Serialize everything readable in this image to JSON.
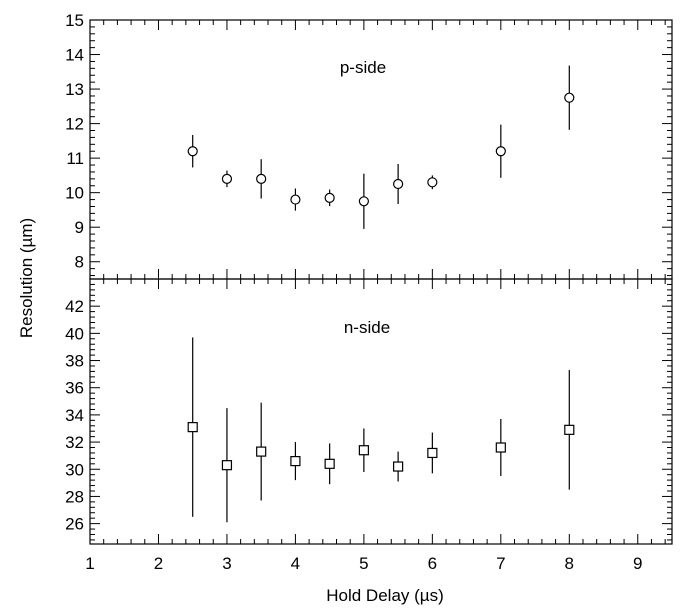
{
  "chart_data": {
    "type": "scatter",
    "xlabel": "Hold Delay (µs)",
    "ylabel": "Resolution (µm)",
    "xlim": [
      1,
      9.5
    ],
    "x_ticks": [
      "1",
      "2",
      "3",
      "4",
      "5",
      "6",
      "7",
      "8",
      "9"
    ],
    "grid": false,
    "panels": [
      {
        "label": "p-side",
        "marker": "circle",
        "ylim": [
          7.5,
          15
        ],
        "y_ticks": [
          "8",
          "9",
          "10",
          "11",
          "12",
          "13",
          "14",
          "15"
        ],
        "points": [
          {
            "x": 2.5,
            "y": 11.2,
            "err": 0.47
          },
          {
            "x": 3.0,
            "y": 10.4,
            "err": 0.24
          },
          {
            "x": 3.5,
            "y": 10.4,
            "err": 0.57
          },
          {
            "x": 4.0,
            "y": 9.8,
            "err": 0.32
          },
          {
            "x": 4.5,
            "y": 9.85,
            "err": 0.24
          },
          {
            "x": 5.0,
            "y": 9.75,
            "err": 0.8
          },
          {
            "x": 5.5,
            "y": 10.25,
            "err": 0.58
          },
          {
            "x": 6.0,
            "y": 10.3,
            "err": 0.2
          },
          {
            "x": 7.0,
            "y": 11.2,
            "err": 0.77
          },
          {
            "x": 8.0,
            "y": 12.75,
            "err": 0.93
          }
        ]
      },
      {
        "label": "n-side",
        "marker": "square",
        "ylim": [
          24.5,
          44
        ],
        "y_ticks": [
          "26",
          "28",
          "30",
          "32",
          "34",
          "36",
          "38",
          "40",
          "42"
        ],
        "points": [
          {
            "x": 2.5,
            "y": 33.1,
            "err": 6.6
          },
          {
            "x": 3.0,
            "y": 30.3,
            "err": 4.2
          },
          {
            "x": 3.5,
            "y": 31.3,
            "err": 3.6
          },
          {
            "x": 4.0,
            "y": 30.6,
            "err": 1.4
          },
          {
            "x": 4.5,
            "y": 30.4,
            "err": 1.5
          },
          {
            "x": 5.0,
            "y": 31.4,
            "err": 1.6
          },
          {
            "x": 5.5,
            "y": 30.2,
            "err": 1.1
          },
          {
            "x": 6.0,
            "y": 31.2,
            "err": 1.5
          },
          {
            "x": 7.0,
            "y": 31.6,
            "err": 2.1
          },
          {
            "x": 8.0,
            "y": 32.9,
            "err": 4.4
          }
        ]
      }
    ]
  }
}
